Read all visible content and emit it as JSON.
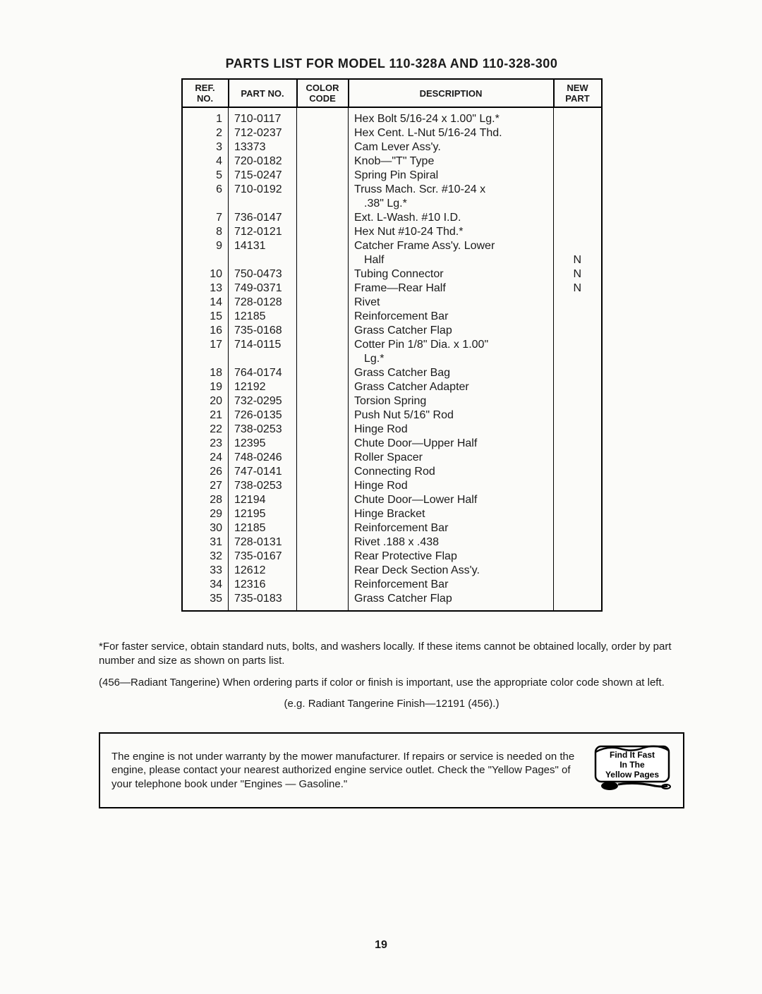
{
  "title": "PARTS LIST FOR MODEL 110-328A AND 110-328-300",
  "headers": {
    "ref": "REF. NO.",
    "part": "PART NO.",
    "color": "COLOR CODE",
    "desc": "DESCRIPTION",
    "new": "NEW PART"
  },
  "rows": [
    {
      "ref": "1",
      "part": "710-0117",
      "color": "",
      "desc": "Hex Bolt 5/16-24 x 1.00\" Lg.*",
      "new": ""
    },
    {
      "ref": "2",
      "part": "712-0237",
      "color": "",
      "desc": "Hex Cent. L-Nut 5/16-24 Thd.",
      "new": ""
    },
    {
      "ref": "3",
      "part": "13373",
      "color": "",
      "desc": "Cam Lever Ass'y.",
      "new": ""
    },
    {
      "ref": "4",
      "part": "720-0182",
      "color": "",
      "desc": "Knob—\"T\" Type",
      "new": ""
    },
    {
      "ref": "5",
      "part": "715-0247",
      "color": "",
      "desc": "Spring Pin Spiral",
      "new": ""
    },
    {
      "ref": "6",
      "part": "710-0192",
      "color": "",
      "desc": "Truss Mach. Scr. #10-24 x",
      "new": ""
    },
    {
      "ref": "",
      "part": "",
      "color": "",
      "desc": ".38\" Lg.*",
      "new": "",
      "sub": true
    },
    {
      "ref": "7",
      "part": "736-0147",
      "color": "",
      "desc": "Ext. L-Wash. #10 I.D.",
      "new": ""
    },
    {
      "ref": "8",
      "part": "712-0121",
      "color": "",
      "desc": "Hex Nut #10-24 Thd.*",
      "new": ""
    },
    {
      "ref": "9",
      "part": "14131",
      "color": "",
      "desc": "Catcher Frame Ass'y. Lower",
      "new": ""
    },
    {
      "ref": "",
      "part": "",
      "color": "",
      "desc": "Half",
      "new": "N",
      "sub": true
    },
    {
      "ref": "10",
      "part": "750-0473",
      "color": "",
      "desc": "Tubing Connector",
      "new": "N"
    },
    {
      "ref": "13",
      "part": "749-0371",
      "color": "",
      "desc": "Frame—Rear Half",
      "new": "N"
    },
    {
      "ref": "14",
      "part": "728-0128",
      "color": "",
      "desc": "Rivet",
      "new": ""
    },
    {
      "ref": "15",
      "part": "12185",
      "color": "",
      "desc": "Reinforcement Bar",
      "new": ""
    },
    {
      "ref": "16",
      "part": "735-0168",
      "color": "",
      "desc": "Grass Catcher Flap",
      "new": ""
    },
    {
      "ref": "17",
      "part": "714-0115",
      "color": "",
      "desc": "Cotter Pin 1/8\" Dia. x 1.00\"",
      "new": ""
    },
    {
      "ref": "",
      "part": "",
      "color": "",
      "desc": "Lg.*",
      "new": "",
      "sub": true
    },
    {
      "ref": "18",
      "part": "764-0174",
      "color": "",
      "desc": "Grass Catcher Bag",
      "new": ""
    },
    {
      "ref": "19",
      "part": "12192",
      "color": "",
      "desc": "Grass Catcher Adapter",
      "new": ""
    },
    {
      "ref": "20",
      "part": "732-0295",
      "color": "",
      "desc": "Torsion Spring",
      "new": ""
    },
    {
      "ref": "21",
      "part": "726-0135",
      "color": "",
      "desc": "Push Nut 5/16\" Rod",
      "new": ""
    },
    {
      "ref": "22",
      "part": "738-0253",
      "color": "",
      "desc": "Hinge Rod",
      "new": ""
    },
    {
      "ref": "23",
      "part": "12395",
      "color": "",
      "desc": "Chute Door—Upper Half",
      "new": ""
    },
    {
      "ref": "24",
      "part": "748-0246",
      "color": "",
      "desc": "Roller Spacer",
      "new": ""
    },
    {
      "ref": "26",
      "part": "747-0141",
      "color": "",
      "desc": "Connecting Rod",
      "new": ""
    },
    {
      "ref": "27",
      "part": "738-0253",
      "color": "",
      "desc": "Hinge Rod",
      "new": ""
    },
    {
      "ref": "28",
      "part": "12194",
      "color": "",
      "desc": "Chute Door—Lower Half",
      "new": ""
    },
    {
      "ref": "29",
      "part": "12195",
      "color": "",
      "desc": "Hinge Bracket",
      "new": ""
    },
    {
      "ref": "30",
      "part": "12185",
      "color": "",
      "desc": "Reinforcement Bar",
      "new": ""
    },
    {
      "ref": "31",
      "part": "728-0131",
      "color": "",
      "desc": "Rivet .188 x .438",
      "new": ""
    },
    {
      "ref": "32",
      "part": "735-0167",
      "color": "",
      "desc": "Rear Protective Flap",
      "new": ""
    },
    {
      "ref": "33",
      "part": "12612",
      "color": "",
      "desc": "Rear Deck Section Ass'y.",
      "new": ""
    },
    {
      "ref": "34",
      "part": "12316",
      "color": "",
      "desc": "Reinforcement Bar",
      "new": ""
    },
    {
      "ref": "35",
      "part": "735-0183",
      "color": "",
      "desc": "Grass Catcher Flap",
      "new": ""
    }
  ],
  "footnote1": "*For faster service, obtain standard nuts, bolts, and washers locally. If these items cannot be obtained locally, order by part number and size as shown on parts list.",
  "footnote2": "(456—Radiant Tangerine) When ordering parts if color or finish is important, use the appropriate color code shown at left.",
  "footnote2b": "(e.g. Radiant Tangerine Finish—12191 (456).)",
  "warranty_text": "The engine is not under warranty by the mower manufacturer. If repairs or service is needed on the engine, please contact your nearest authorized engine service outlet. Check the \"Yellow Pages\" of your telephone book under \"Engines — Gasoline.\"",
  "yellow_pages": {
    "line1": "Find It Fast",
    "line2": "In The",
    "line3": "Yellow Pages"
  },
  "page_number": "19"
}
